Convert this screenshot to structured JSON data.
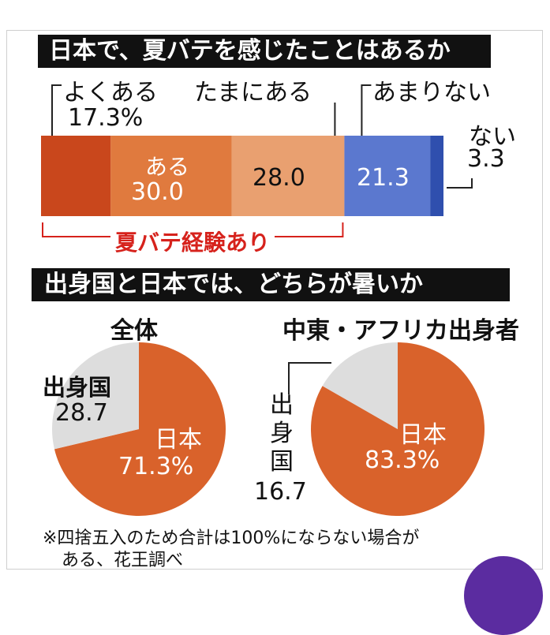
{
  "chart_data": [
    {
      "type": "bar",
      "title": "日本で、夏バテを感じたことはあるか",
      "categories": [
        "よくある",
        "ある",
        "たまにある",
        "あまりない",
        "ない"
      ],
      "values": [
        17.3,
        30.0,
        28.0,
        21.3,
        3.3
      ],
      "colors": [
        "#c9471c",
        "#e07a3e",
        "#e9a070",
        "#5b78cf",
        "#2f4fae"
      ],
      "labels": {
        "yoku_aru": "よくある",
        "yoku_aru_value": "17.3%",
        "aru": "ある",
        "aru_value": "30.0",
        "tamani": "たまにある",
        "tamani_value": "28.0",
        "amari": "あまりない",
        "amari_value": "21.3",
        "nai": "ない",
        "nai_value": "3.3"
      },
      "group_label": "夏バテ経験あり",
      "group_color": "#d6221c"
    },
    {
      "type": "pie",
      "section_title": "出身国と日本では、どちらが暑いか",
      "title": "全体",
      "slices": [
        {
          "name": "日本",
          "value": 71.3,
          "label": "71.3%",
          "color": "#d9622b"
        },
        {
          "name": "出身国",
          "value": 28.7,
          "label": "28.7",
          "color": "#dddddd"
        }
      ]
    },
    {
      "type": "pie",
      "title": "中東・アフリカ出身者",
      "slices": [
        {
          "name": "日本",
          "value": 83.3,
          "label": "83.3%",
          "color": "#d9622b"
        },
        {
          "name": "出身国",
          "value": 16.7,
          "label": "16.7",
          "color": "#dddddd"
        }
      ]
    }
  ],
  "footnote": {
    "line1": "※四捨五入のため合計は100%にならない場合が",
    "line2": "ある、花王調べ"
  }
}
